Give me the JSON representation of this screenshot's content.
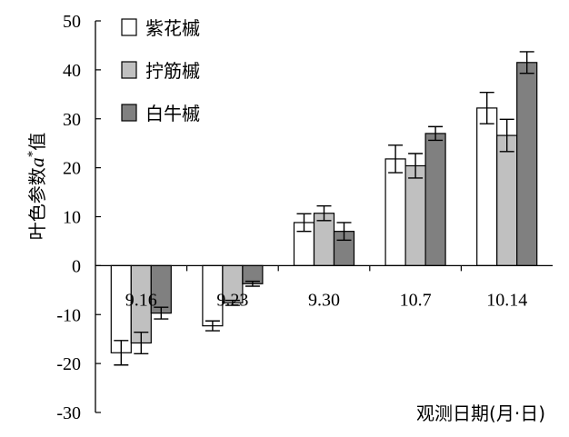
{
  "chart_data": {
    "type": "bar",
    "title": "",
    "xlabel": "观测日期(月·日)",
    "ylabel_prefix": "叶色参数",
    "ylabel_var": "a",
    "ylabel_sup": "*",
    "ylabel_suffix": "值",
    "ylim": [
      -30,
      50
    ],
    "yticks": [
      -30,
      -20,
      -10,
      0,
      10,
      20,
      30,
      40,
      50
    ],
    "categories": [
      "9.16",
      "9.23",
      "9.30",
      "10.7",
      "10.14"
    ],
    "legend_position": "top-left",
    "grid": false,
    "series": [
      {
        "name": "紫花槭",
        "color": "#ffffff",
        "values": [
          -17.8,
          -12.3,
          8.8,
          21.8,
          32.2
        ],
        "errors": [
          2.5,
          1.0,
          1.8,
          2.8,
          3.2
        ]
      },
      {
        "name": "拧筋槭",
        "color": "#c0c0c0",
        "values": [
          -15.8,
          -7.6,
          10.7,
          20.4,
          26.6
        ],
        "errors": [
          2.2,
          0.5,
          1.5,
          2.5,
          3.3
        ]
      },
      {
        "name": "白牛槭",
        "color": "#808080",
        "values": [
          -9.7,
          -3.7,
          7.0,
          27.0,
          41.5
        ],
        "errors": [
          1.2,
          0.5,
          1.8,
          1.4,
          2.2
        ]
      }
    ]
  }
}
